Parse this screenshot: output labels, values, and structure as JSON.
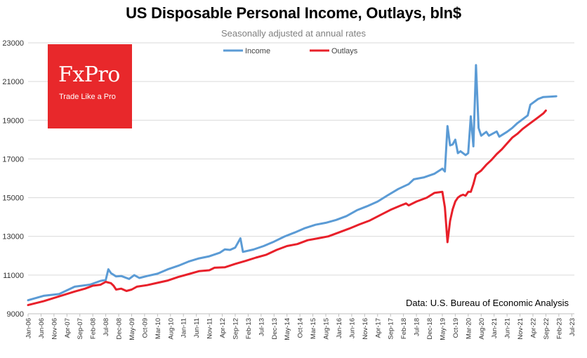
{
  "chart_data": {
    "type": "line",
    "title": "US Disposable Personal Income, Outlays, bln$",
    "subtitle": "Seasonally adjusted at annual rates",
    "source": "Data: U.S. Bureau of Economic Analysis",
    "ylim": [
      9000,
      23000
    ],
    "yticks": [
      9000,
      11000,
      13000,
      15000,
      17000,
      19000,
      21000,
      23000
    ],
    "x_index_range": [
      0,
      211
    ],
    "xtick_labels": [
      "Jan-06",
      "Jun-06",
      "Nov-06",
      "Apr-07",
      "Sep-07",
      "Feb-08",
      "Jul-08",
      "Dec-08",
      "May-09",
      "Oct-09",
      "Mar-10",
      "Aug-10",
      "Jan-11",
      "Jun-11",
      "Nov-11",
      "Apr-12",
      "Sep-12",
      "Feb-13",
      "Jul-13",
      "Dec-13",
      "May-14",
      "Oct-14",
      "Mar-15",
      "Aug-15",
      "Jan-16",
      "Jun-16",
      "Nov-16",
      "Apr-17",
      "Sep-17",
      "Feb-18",
      "Jul-18",
      "Dec-18",
      "May-19",
      "Oct-19",
      "Mar-20",
      "Aug-20",
      "Jan-21",
      "Jun-21",
      "Nov-21",
      "Apr-22",
      "Sep-22",
      "Feb-23",
      "Jul-23"
    ],
    "xtick_step_months": 5,
    "legend_position": "top-center",
    "series": [
      {
        "name": "Income",
        "color": "#5b9bd5",
        "points": [
          [
            0,
            9700
          ],
          [
            6,
            9930
          ],
          [
            12,
            10020
          ],
          [
            18,
            10400
          ],
          [
            24,
            10510
          ],
          [
            28,
            10700
          ],
          [
            30,
            10750
          ],
          [
            31,
            11300
          ],
          [
            32,
            11100
          ],
          [
            34,
            10930
          ],
          [
            36,
            10950
          ],
          [
            39,
            10800
          ],
          [
            41,
            11000
          ],
          [
            43,
            10850
          ],
          [
            46,
            10950
          ],
          [
            50,
            11070
          ],
          [
            54,
            11300
          ],
          [
            58,
            11480
          ],
          [
            62,
            11700
          ],
          [
            66,
            11860
          ],
          [
            70,
            11970
          ],
          [
            74,
            12150
          ],
          [
            76,
            12330
          ],
          [
            78,
            12300
          ],
          [
            80,
            12420
          ],
          [
            82,
            12900
          ],
          [
            83,
            12200
          ],
          [
            87,
            12320
          ],
          [
            91,
            12500
          ],
          [
            95,
            12730
          ],
          [
            99,
            12990
          ],
          [
            103,
            13200
          ],
          [
            107,
            13430
          ],
          [
            111,
            13600
          ],
          [
            115,
            13700
          ],
          [
            119,
            13850
          ],
          [
            123,
            14050
          ],
          [
            127,
            14350
          ],
          [
            131,
            14560
          ],
          [
            135,
            14800
          ],
          [
            139,
            15130
          ],
          [
            143,
            15450
          ],
          [
            147,
            15700
          ],
          [
            149,
            15950
          ],
          [
            153,
            16050
          ],
          [
            157,
            16240
          ],
          [
            160,
            16500
          ],
          [
            161,
            16350
          ],
          [
            162,
            18700
          ],
          [
            163,
            17700
          ],
          [
            164,
            17750
          ],
          [
            165,
            18000
          ],
          [
            166,
            17300
          ],
          [
            167,
            17400
          ],
          [
            169,
            17200
          ],
          [
            170,
            17300
          ],
          [
            171,
            19200
          ],
          [
            172,
            17650
          ],
          [
            173,
            21850
          ],
          [
            174,
            18600
          ],
          [
            175,
            18200
          ],
          [
            177,
            18400
          ],
          [
            178,
            18200
          ],
          [
            181,
            18420
          ],
          [
            182,
            18150
          ],
          [
            185,
            18400
          ],
          [
            187,
            18600
          ],
          [
            189,
            18850
          ],
          [
            191,
            19050
          ],
          [
            193,
            19250
          ],
          [
            194,
            19800
          ],
          [
            197,
            20100
          ],
          [
            199,
            20200
          ],
          [
            202,
            20220
          ],
          [
            204,
            20240
          ]
        ]
      },
      {
        "name": "Outlays",
        "color": "#e8202a",
        "points": [
          [
            0,
            9450
          ],
          [
            6,
            9650
          ],
          [
            12,
            9900
          ],
          [
            18,
            10150
          ],
          [
            22,
            10300
          ],
          [
            25,
            10450
          ],
          [
            28,
            10500
          ],
          [
            30,
            10650
          ],
          [
            32,
            10580
          ],
          [
            33,
            10450
          ],
          [
            34,
            10250
          ],
          [
            36,
            10300
          ],
          [
            38,
            10180
          ],
          [
            40,
            10250
          ],
          [
            42,
            10400
          ],
          [
            46,
            10480
          ],
          [
            50,
            10600
          ],
          [
            54,
            10720
          ],
          [
            58,
            10900
          ],
          [
            62,
            11050
          ],
          [
            66,
            11200
          ],
          [
            70,
            11250
          ],
          [
            72,
            11380
          ],
          [
            76,
            11400
          ],
          [
            80,
            11580
          ],
          [
            84,
            11730
          ],
          [
            88,
            11900
          ],
          [
            92,
            12050
          ],
          [
            96,
            12300
          ],
          [
            100,
            12500
          ],
          [
            104,
            12600
          ],
          [
            108,
            12800
          ],
          [
            112,
            12900
          ],
          [
            116,
            13000
          ],
          [
            120,
            13200
          ],
          [
            124,
            13400
          ],
          [
            128,
            13620
          ],
          [
            132,
            13820
          ],
          [
            136,
            14100
          ],
          [
            140,
            14370
          ],
          [
            144,
            14600
          ],
          [
            146,
            14700
          ],
          [
            147,
            14600
          ],
          [
            150,
            14800
          ],
          [
            154,
            15000
          ],
          [
            157,
            15250
          ],
          [
            160,
            15300
          ],
          [
            161,
            14500
          ],
          [
            162,
            12700
          ],
          [
            163,
            13800
          ],
          [
            164,
            14400
          ],
          [
            165,
            14800
          ],
          [
            166,
            15000
          ],
          [
            167,
            15100
          ],
          [
            168,
            15150
          ],
          [
            169,
            15100
          ],
          [
            170,
            15300
          ],
          [
            171,
            15300
          ],
          [
            172,
            15700
          ],
          [
            173,
            16200
          ],
          [
            175,
            16400
          ],
          [
            177,
            16700
          ],
          [
            179,
            16950
          ],
          [
            181,
            17250
          ],
          [
            183,
            17500
          ],
          [
            185,
            17800
          ],
          [
            187,
            18100
          ],
          [
            189,
            18300
          ],
          [
            191,
            18550
          ],
          [
            193,
            18750
          ],
          [
            195,
            18950
          ],
          [
            197,
            19150
          ],
          [
            199,
            19350
          ],
          [
            200,
            19500
          ]
        ]
      }
    ]
  },
  "logo": {
    "name": "FxPro",
    "tagline": "Trade Like a Pro",
    "color": "#e8282b"
  }
}
